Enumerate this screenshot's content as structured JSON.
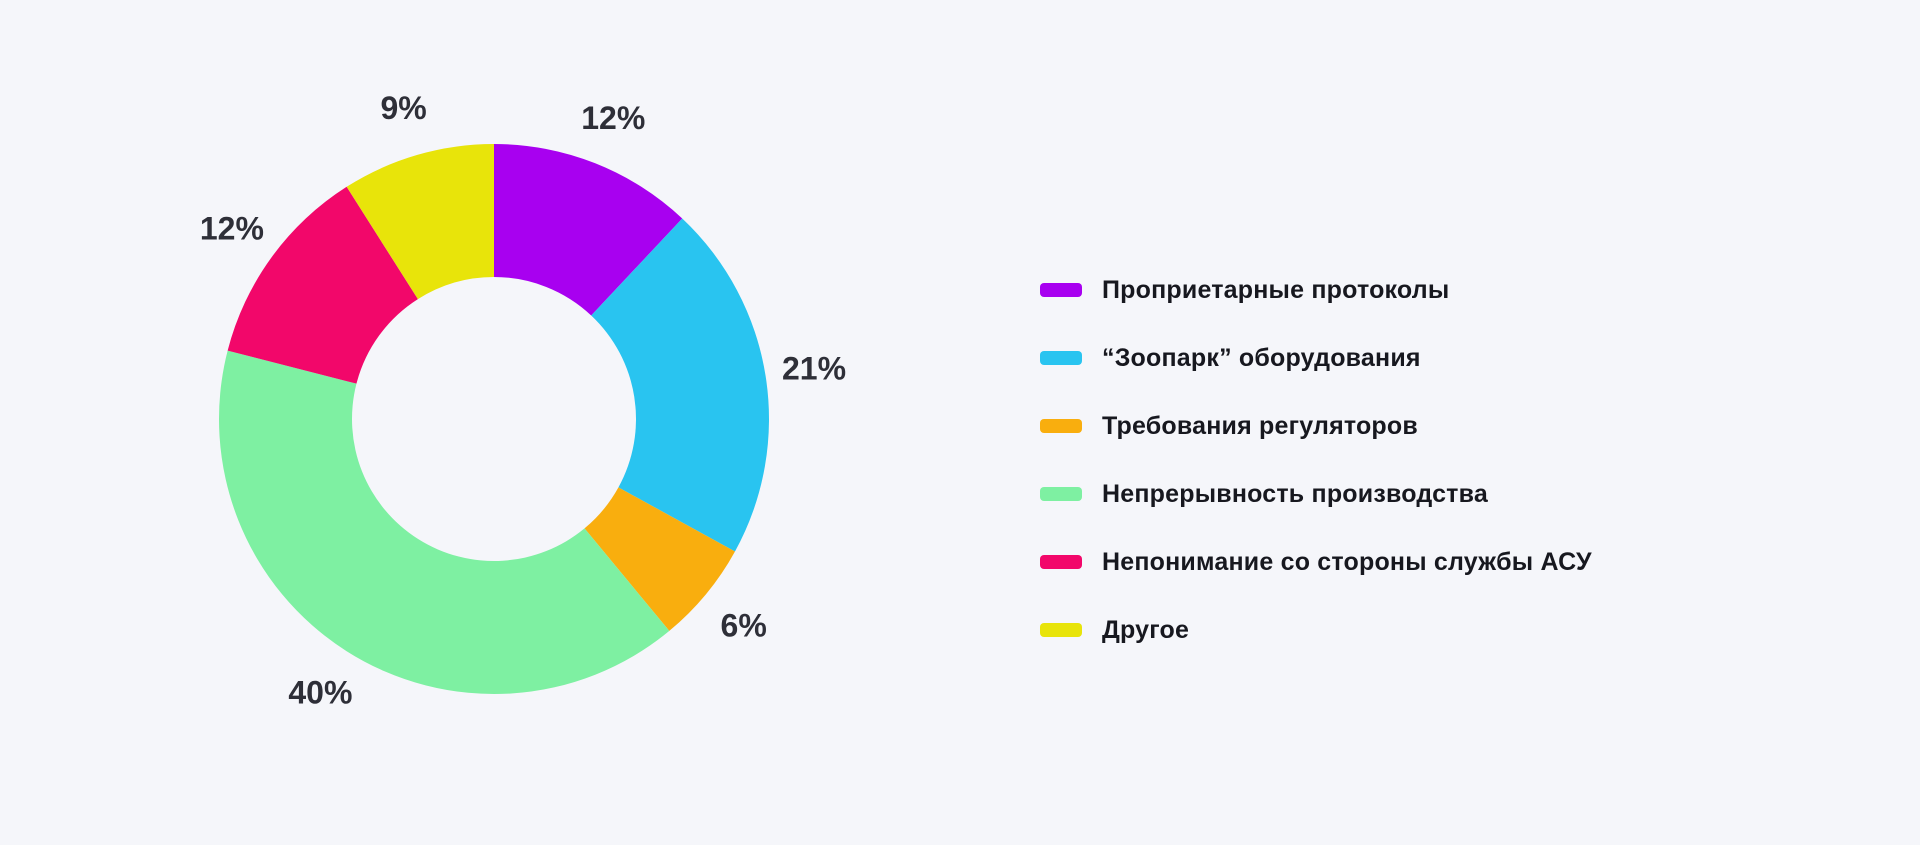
{
  "background_color": "#F5F6FA",
  "percent_label_color": "#2E2F38",
  "legend_label_color": "#17181F",
  "chart_data": {
    "type": "pie",
    "variant": "donut",
    "start_angle_deg": 0,
    "direction": "clockwise",
    "total": 100,
    "legend_position": "right",
    "slices": [
      {
        "label": "Проприетарные протоколы",
        "value": 12,
        "percent_label": "12%",
        "color": "#A800F0"
      },
      {
        "label": "“Зоопарк” оборудования",
        "value": 21,
        "percent_label": "21%",
        "color": "#29C4F0"
      },
      {
        "label": "Требования регуляторов",
        "value": 6,
        "percent_label": "6%",
        "color": "#F9AE0E"
      },
      {
        "label": "Непрерывность производства",
        "value": 40,
        "percent_label": "40%",
        "color": "#7EF0A2"
      },
      {
        "label": "Непонимание со стороны службы АСУ",
        "value": 12,
        "percent_label": "12%",
        "color": "#F2076A"
      },
      {
        "label": "Другое",
        "value": 9,
        "percent_label": "9%",
        "color": "#E8E40A"
      }
    ]
  }
}
